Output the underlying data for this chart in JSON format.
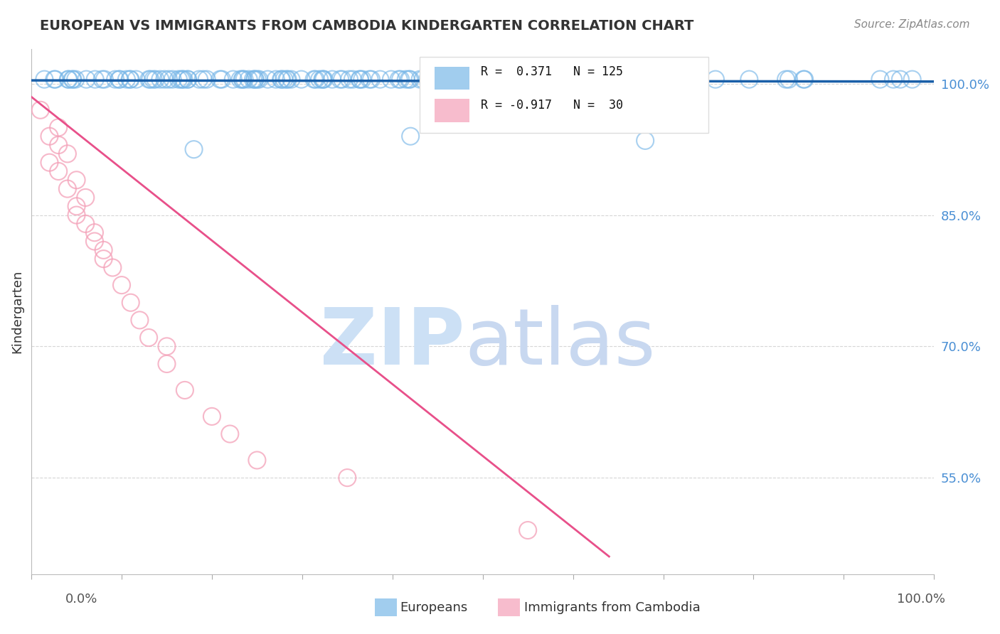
{
  "title": "EUROPEAN VS IMMIGRANTS FROM CAMBODIA KINDERGARTEN CORRELATION CHART",
  "source_text": "Source: ZipAtlas.com",
  "ylabel": "Kindergarten",
  "ytick_labels": [
    "55.0%",
    "70.0%",
    "85.0%",
    "100.0%"
  ],
  "ytick_values": [
    0.55,
    0.7,
    0.85,
    1.0
  ],
  "xlim": [
    0.0,
    1.0
  ],
  "ylim": [
    0.44,
    1.04
  ],
  "blue_color": "#7ab8e8",
  "pink_color": "#f4a0b8",
  "blue_line_color": "#1a5fa8",
  "pink_line_color": "#e8508a",
  "watermark_zip_color": "#cce0f5",
  "watermark_atlas_color": "#c8d8f0",
  "background_color": "#ffffff",
  "legend_label1": "Europeans",
  "legend_label2": "Immigrants from Cambodia",
  "xtick_labels_left": "0.0%",
  "xtick_labels_right": "100.0%",
  "pink_scatter_x": [
    0.01,
    0.02,
    0.02,
    0.03,
    0.03,
    0.04,
    0.04,
    0.05,
    0.05,
    0.06,
    0.06,
    0.07,
    0.07,
    0.08,
    0.09,
    0.1,
    0.11,
    0.12,
    0.13,
    0.15,
    0.17,
    0.2,
    0.22,
    0.25,
    0.35,
    0.55,
    0.03,
    0.05,
    0.08,
    0.15
  ],
  "pink_scatter_y": [
    0.97,
    0.94,
    0.91,
    0.95,
    0.9,
    0.92,
    0.88,
    0.89,
    0.86,
    0.87,
    0.84,
    0.83,
    0.82,
    0.81,
    0.79,
    0.77,
    0.75,
    0.73,
    0.71,
    0.68,
    0.65,
    0.62,
    0.6,
    0.57,
    0.55,
    0.49,
    0.93,
    0.85,
    0.8,
    0.7
  ],
  "pink_line_x0": 0.0,
  "pink_line_y0": 0.985,
  "pink_line_x1": 0.64,
  "pink_line_y1": 0.46
}
